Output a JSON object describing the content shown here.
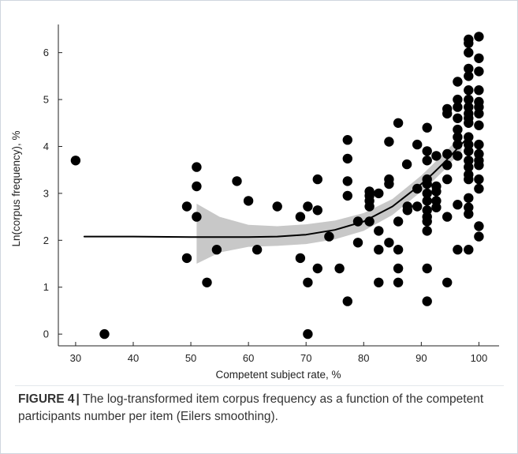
{
  "chart_data": {
    "type": "scatter",
    "title": "",
    "xlabel": "Competent subject rate, %",
    "ylabel": "Ln(corpus frequency), %",
    "xlim": [
      27,
      103.5
    ],
    "ylim": [
      -0.25,
      6.6
    ],
    "xticks": [
      30,
      40,
      50,
      60,
      70,
      80,
      90,
      100
    ],
    "yticks": [
      0,
      1,
      2,
      3,
      4,
      5,
      6
    ],
    "grid": false,
    "legend": "none",
    "colors": {
      "points": "#000000",
      "curve": "#000000",
      "band": "#c8c8c8",
      "axis": "#222222"
    },
    "points": [
      [
        30,
        3.7
      ],
      [
        35,
        0
      ],
      [
        49.3,
        2.72
      ],
      [
        49.3,
        1.62
      ],
      [
        51,
        3.56
      ],
      [
        51,
        3.15
      ],
      [
        51,
        2.5
      ],
      [
        52.8,
        1.1
      ],
      [
        54.5,
        1.8
      ],
      [
        58,
        3.26
      ],
      [
        60,
        2.84
      ],
      [
        61.5,
        1.8
      ],
      [
        65,
        2.72
      ],
      [
        69,
        2.5
      ],
      [
        69,
        1.62
      ],
      [
        70.3,
        2.72
      ],
      [
        70.3,
        1.1
      ],
      [
        70.3,
        0
      ],
      [
        72,
        3.3
      ],
      [
        72,
        2.64
      ],
      [
        72,
        1.4
      ],
      [
        74,
        2.08
      ],
      [
        75.8,
        1.4
      ],
      [
        77.2,
        4.14
      ],
      [
        77.2,
        3.74
      ],
      [
        77.2,
        3.26
      ],
      [
        77.2,
        2.95
      ],
      [
        77.2,
        0.7
      ],
      [
        79,
        2.4
      ],
      [
        79,
        1.95
      ],
      [
        81,
        3.04
      ],
      [
        81,
        2.95
      ],
      [
        81,
        2.84
      ],
      [
        81,
        2.72
      ],
      [
        81,
        2.4
      ],
      [
        82.6,
        3.0
      ],
      [
        82.6,
        2.2
      ],
      [
        82.6,
        1.8
      ],
      [
        82.6,
        1.1
      ],
      [
        84.4,
        4.1
      ],
      [
        84.4,
        3.3
      ],
      [
        84.4,
        3.2
      ],
      [
        84.4,
        1.95
      ],
      [
        86,
        4.5
      ],
      [
        86,
        2.4
      ],
      [
        86,
        1.8
      ],
      [
        86,
        1.4
      ],
      [
        86,
        1.1
      ],
      [
        87.5,
        3.62
      ],
      [
        87.6,
        2.72
      ],
      [
        87.6,
        2.64
      ],
      [
        89.3,
        4.04
      ],
      [
        89.3,
        3.1
      ],
      [
        89.3,
        2.72
      ],
      [
        91,
        4.4
      ],
      [
        91,
        3.9
      ],
      [
        91,
        3.7
      ],
      [
        91,
        3.3
      ],
      [
        91,
        3.2
      ],
      [
        91,
        3.0
      ],
      [
        91,
        2.84
      ],
      [
        91,
        2.64
      ],
      [
        91,
        2.5
      ],
      [
        91,
        2.4
      ],
      [
        91,
        2.2
      ],
      [
        91,
        1.4
      ],
      [
        91,
        0.7
      ],
      [
        92.6,
        3.8
      ],
      [
        92.6,
        3.15
      ],
      [
        92.6,
        3.04
      ],
      [
        92.6,
        2.84
      ],
      [
        92.6,
        2.7
      ],
      [
        94.5,
        4.8
      ],
      [
        94.5,
        4.7
      ],
      [
        94.5,
        3.84
      ],
      [
        94.5,
        3.6
      ],
      [
        94.5,
        3.3
      ],
      [
        94.5,
        2.5
      ],
      [
        94.5,
        1.1
      ],
      [
        96.3,
        5.38
      ],
      [
        96.3,
        5.0
      ],
      [
        96.3,
        4.84
      ],
      [
        96.3,
        4.6
      ],
      [
        96.3,
        4.36
      ],
      [
        96.3,
        4.2
      ],
      [
        96.3,
        4.04
      ],
      [
        96.3,
        3.8
      ],
      [
        96.3,
        2.76
      ],
      [
        96.3,
        1.8
      ],
      [
        98.2,
        6.28
      ],
      [
        98.2,
        6.2
      ],
      [
        98.2,
        6.0
      ],
      [
        98.2,
        5.66
      ],
      [
        98.2,
        5.5
      ],
      [
        98.2,
        5.2
      ],
      [
        98.2,
        5.0
      ],
      [
        98.2,
        4.84
      ],
      [
        98.2,
        4.7
      ],
      [
        98.2,
        4.6
      ],
      [
        98.2,
        4.5
      ],
      [
        98.2,
        4.2
      ],
      [
        98.2,
        4.04
      ],
      [
        98.2,
        3.9
      ],
      [
        98.2,
        3.7
      ],
      [
        98.2,
        3.56
      ],
      [
        98.2,
        3.4
      ],
      [
        98.2,
        3.3
      ],
      [
        98.2,
        2.9
      ],
      [
        98.2,
        2.7
      ],
      [
        98.2,
        2.56
      ],
      [
        98.2,
        1.8
      ],
      [
        100,
        6.34
      ],
      [
        100,
        5.88
      ],
      [
        100,
        5.6
      ],
      [
        100,
        5.2
      ],
      [
        100,
        4.95
      ],
      [
        100,
        4.84
      ],
      [
        100,
        4.7
      ],
      [
        100,
        4.45
      ],
      [
        100,
        4.04
      ],
      [
        100,
        3.84
      ],
      [
        100,
        3.7
      ],
      [
        100,
        3.6
      ],
      [
        100,
        3.3
      ],
      [
        100,
        3.1
      ],
      [
        100,
        2.3
      ],
      [
        100,
        2.08
      ]
    ],
    "fit_curve": {
      "x": [
        31.5,
        40,
        50,
        55,
        60,
        65,
        70,
        75,
        80,
        85,
        90,
        92,
        94,
        96,
        98
      ],
      "y": [
        2.08,
        2.08,
        2.07,
        2.07,
        2.07,
        2.08,
        2.12,
        2.22,
        2.4,
        2.72,
        3.2,
        3.42,
        3.66,
        3.92,
        4.18
      ]
    },
    "confidence_band": {
      "x": [
        51,
        55,
        60,
        65,
        70,
        75,
        80,
        85,
        90,
        92,
        94,
        96,
        97
      ],
      "upper": [
        2.78,
        2.5,
        2.33,
        2.3,
        2.34,
        2.42,
        2.58,
        2.88,
        3.38,
        3.62,
        3.86,
        4.12,
        4.24
      ],
      "lower": [
        1.5,
        1.74,
        1.86,
        1.88,
        1.92,
        2.02,
        2.2,
        2.54,
        3.04,
        3.26,
        3.5,
        3.78,
        3.9
      ]
    }
  },
  "caption": {
    "label": "FIGURE 4",
    "separator": "|",
    "text": "The log-transformed item corpus frequency as a function of the competent participants number per item (Eilers smoothing)."
  }
}
